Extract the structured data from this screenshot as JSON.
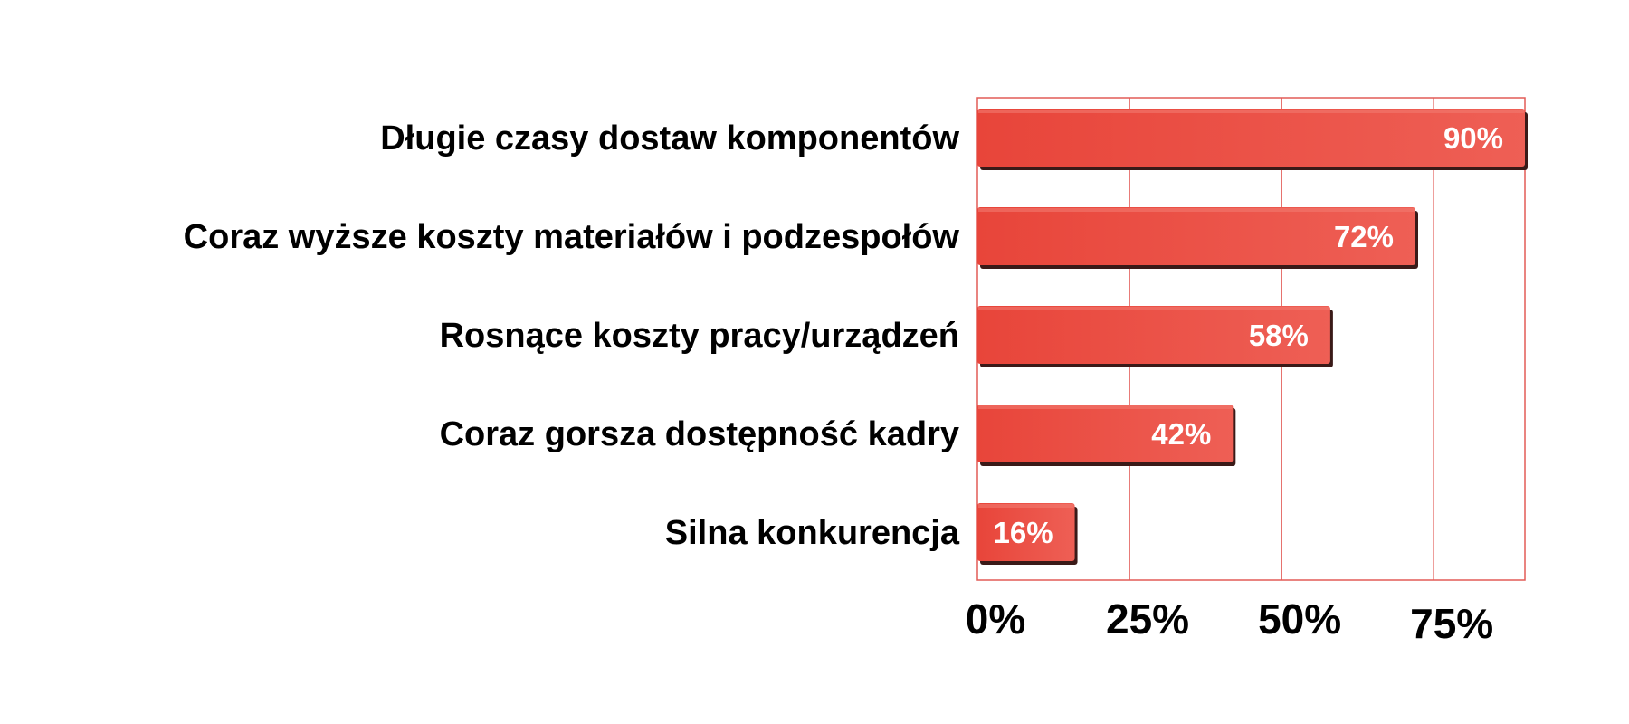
{
  "chart_data": {
    "type": "bar",
    "orientation": "horizontal",
    "categories": [
      "Długie czasy dostaw komponentów",
      "Coraz wyższe koszty materiałów i podzespołów",
      "Rosnące koszty pracy/urządzeń",
      "Coraz gorsza dostępność kadry",
      "Silna konkurencja"
    ],
    "values": [
      90,
      72,
      58,
      42,
      16
    ],
    "data_labels": [
      "90%",
      "72%",
      "58%",
      "42%",
      "16%"
    ],
    "xticks": [
      0,
      25,
      50,
      75
    ],
    "xtick_labels": [
      "0%",
      "25%",
      "50%",
      "75%"
    ],
    "xlim": [
      0,
      90
    ],
    "grid": true,
    "title": "",
    "xlabel": "",
    "ylabel": ""
  },
  "colors": {
    "bar": "#e8453a",
    "bar_light": "#ee5f55",
    "bar_shadow": "#3a1a18",
    "grid": "#e25b57",
    "text": "#000000",
    "data_label": "#ffffff"
  }
}
